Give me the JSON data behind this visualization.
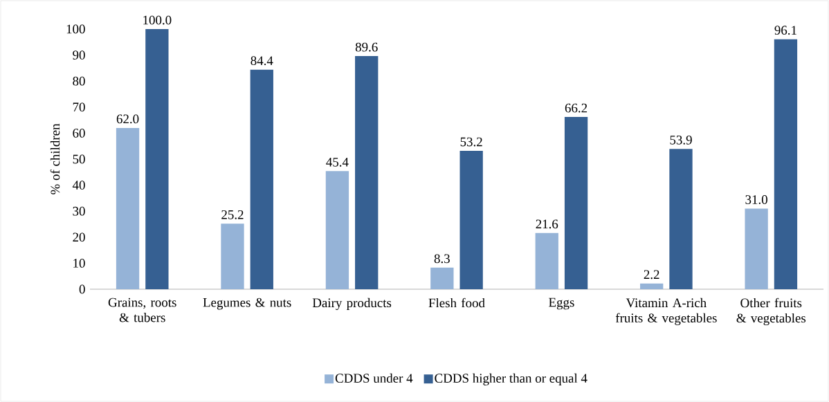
{
  "chart_data": {
    "type": "bar",
    "ylabel": "% of children",
    "categories": [
      "Grains, roots & tubers",
      "Legumes & nuts",
      "Dairy products",
      "Flesh food",
      "Eggs",
      "Vitamin A-rich fruits & vegetables",
      "Other fruits & vegetables"
    ],
    "series": [
      {
        "name": "CDDS under 4",
        "color": "#95b3d7",
        "values": [
          62.0,
          25.2,
          45.4,
          8.3,
          21.6,
          2.2,
          31.0
        ],
        "value_labels": [
          "62.0",
          "25.2",
          "45.4",
          "8.3",
          "21.6",
          "2.2",
          "31.0"
        ]
      },
      {
        "name": "CDDS higher than or equal 4",
        "color": "#366092",
        "values": [
          100.0,
          84.4,
          89.6,
          53.2,
          66.2,
          53.9,
          96.1
        ],
        "value_labels": [
          "100.0",
          "84.4",
          "89.6",
          "53.2",
          "66.2",
          "53.9",
          "96.1"
        ]
      }
    ],
    "ylim": [
      0,
      100
    ],
    "yticks": [
      0,
      10,
      20,
      30,
      40,
      50,
      60,
      70,
      80,
      90,
      100
    ],
    "legend": "bottom"
  }
}
